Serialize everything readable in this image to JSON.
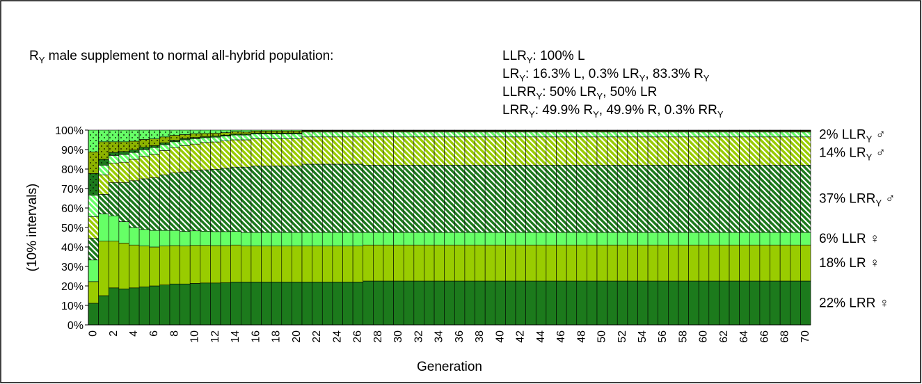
{
  "chart_data": {
    "type": "stacked_bar_100",
    "title": [
      "R",
      "Y",
      " male supplement to normal all-hybrid population:"
    ],
    "annotations": [
      [
        "LLR",
        "Y",
        ": 100% L"
      ],
      [
        "LR",
        "Y",
        ": 16.3% L, 0.3% LR",
        "Y",
        ", 83.3% R",
        "Y"
      ],
      [
        "LLRR",
        "Y",
        ": 50% LR",
        "Y",
        ", 50% LR"
      ],
      [
        "LRR",
        "Y",
        ": 49.9% R",
        "Y",
        ", 49.9% R, 0.3% RR",
        "Y"
      ]
    ],
    "x_label": "Generation",
    "y_label": "(10% intervals)",
    "categories": [
      0,
      null,
      2,
      null,
      4,
      null,
      6,
      null,
      8,
      null,
      10,
      null,
      12,
      null,
      14,
      null,
      16,
      null,
      18,
      null,
      20,
      null,
      22,
      null,
      24,
      null,
      26,
      null,
      28,
      null,
      30,
      null,
      32,
      null,
      34,
      null,
      36,
      null,
      38,
      null,
      40,
      null,
      42,
      null,
      44,
      null,
      46,
      null,
      48,
      null,
      50,
      null,
      52,
      null,
      54,
      null,
      56,
      null,
      58,
      null,
      60,
      null,
      62,
      null,
      64,
      null,
      66,
      null,
      68,
      null,
      70
    ],
    "ylim": [
      0,
      100
    ],
    "yticks": [
      {
        "value": 0,
        "label": "0%"
      },
      {
        "value": 10,
        "label": "10%"
      },
      {
        "value": 20,
        "label": "20%"
      },
      {
        "value": 30,
        "label": "30%"
      },
      {
        "value": 40,
        "label": "40%"
      },
      {
        "value": 50,
        "label": "50%"
      },
      {
        "value": 60,
        "label": "60%"
      },
      {
        "value": 70,
        "label": "70%"
      },
      {
        "value": 80,
        "label": "80%"
      },
      {
        "value": 90,
        "label": "90%"
      },
      {
        "value": 100,
        "label": "100%"
      }
    ],
    "series": [
      {
        "label": [
          "22% LRR ♀"
        ],
        "color": "#1c7a1c",
        "pattern": "solid",
        "values": [
          11.1,
          15,
          19,
          18.5,
          19,
          19.5,
          20,
          20.5,
          21,
          21,
          21.3,
          21.5,
          21.5,
          21.7,
          22,
          22,
          22,
          22,
          22,
          22,
          22,
          22,
          22,
          22,
          22,
          22,
          22,
          22.5,
          22.5,
          22.5,
          22.5,
          22.5,
          22.5,
          22.5,
          22.5,
          22.5,
          22.5,
          22.5,
          22.5,
          22.5,
          22.5,
          22.5,
          22.5,
          22.5,
          22.5,
          22.5,
          22.5,
          22.5,
          22.5,
          22.5,
          22.5,
          22.5,
          22.5,
          22.5,
          22.5,
          22.5,
          22.5,
          22.5,
          22.5,
          22.5,
          22.5,
          22.5,
          22.5,
          22.5,
          22.5,
          22.5,
          22.5,
          22.5,
          22.5,
          22.5,
          22.5
        ]
      },
      {
        "label": [
          "18% LR ♀"
        ],
        "color": "#99cc00",
        "pattern": "solid",
        "values": [
          11.1,
          28,
          24,
          23.5,
          22,
          21,
          20,
          20,
          19.7,
          19.5,
          19.5,
          19.3,
          19.2,
          19,
          19,
          18.5,
          18.5,
          18.5,
          18.5,
          18.5,
          18.5,
          18.5,
          18.5,
          18.5,
          18.5,
          18.5,
          18.5,
          18.5,
          18.5,
          18.5,
          18.5,
          18.5,
          18.5,
          18.5,
          18.5,
          18.5,
          18.5,
          18.5,
          18.5,
          18.5,
          18.5,
          18.5,
          18.5,
          18.5,
          18.5,
          18.5,
          18.5,
          18.5,
          18.5,
          18.5,
          18.5,
          18.5,
          18.5,
          18.5,
          18.5,
          18.5,
          18.5,
          18.5,
          18.5,
          18.5,
          18.5,
          18.5,
          18.5,
          18.5,
          18.5,
          18.5,
          18.5,
          18.5,
          18.5,
          18.5,
          18.5
        ]
      },
      {
        "label": [
          "6% LLR ♀"
        ],
        "color": "#66ff66",
        "pattern": "solid",
        "values": [
          11.1,
          14,
          13,
          11,
          9,
          8.5,
          8.5,
          8,
          7.8,
          7.5,
          7.5,
          7.3,
          7.2,
          7.2,
          7,
          7,
          7,
          7,
          7,
          7,
          7,
          7,
          7,
          7,
          7,
          7,
          7,
          6.5,
          6.5,
          6.5,
          6.5,
          6.5,
          6.5,
          6.5,
          6.5,
          6.5,
          6.5,
          6.5,
          6.5,
          6.5,
          6.5,
          6.5,
          6.5,
          6.5,
          6.5,
          6.5,
          6.5,
          6.5,
          6.5,
          6.5,
          6.5,
          6.5,
          6.5,
          6.5,
          6.5,
          6.5,
          6.5,
          6.5,
          6.5,
          6.5,
          6.5,
          6.5,
          6.5,
          6.5,
          6.5,
          6.5,
          6.5,
          6.5,
          6.5,
          6.5,
          6.5
        ]
      },
      {
        "label": [
          "37% LRR",
          "Y",
          " ♂"
        ],
        "color": "#1c7a1c",
        "pattern": "hatch",
        "values": [
          11.1,
          10,
          17,
          20,
          24,
          26,
          27,
          28.5,
          29.5,
          30.5,
          31,
          31.5,
          32,
          32.5,
          33,
          33.5,
          34,
          34,
          34,
          34,
          34,
          35,
          35,
          35,
          35,
          35,
          35,
          34.5,
          34.5,
          34.5,
          34.5,
          34.5,
          34.5,
          34.5,
          34.5,
          34.5,
          34.5,
          34.5,
          34.5,
          34.5,
          34.5,
          34.5,
          34.5,
          34.5,
          34.5,
          34.5,
          34.5,
          34.5,
          34.5,
          34.5,
          34.5,
          34.5,
          34.5,
          34.5,
          34.5,
          34.5,
          34.5,
          34.5,
          34.5,
          34.5,
          34.5,
          34.5,
          34.5,
          34.5,
          34.5,
          34.5,
          34.5,
          34.5,
          34.5,
          34.5,
          34.5
        ]
      },
      {
        "label": [
          "14% LR",
          "Y",
          " ♂"
        ],
        "color": "#99cc00",
        "pattern": "hatch",
        "values": [
          11.1,
          10,
          10,
          10.5,
          11,
          11.5,
          12,
          12.5,
          13,
          13.5,
          13.5,
          14,
          14,
          14,
          14,
          14,
          14,
          14,
          14,
          14,
          14,
          14,
          14,
          14,
          14,
          14,
          14,
          14.5,
          14.5,
          14.5,
          14.5,
          14.5,
          14.5,
          14.5,
          14.5,
          14.5,
          14.5,
          14.5,
          14.5,
          14.5,
          14.5,
          14.5,
          14.5,
          14.5,
          14.5,
          14.5,
          14.5,
          14.5,
          14.5,
          14.5,
          14.5,
          14.5,
          14.5,
          14.5,
          14.5,
          14.5,
          14.5,
          14.5,
          14.5,
          14.5,
          14.5,
          14.5,
          14.5,
          14.5,
          14.5,
          14.5,
          14.5,
          14.5,
          14.5,
          14.5,
          14.5
        ]
      },
      {
        "label": [
          "2% LLR",
          "Y",
          " ♂"
        ],
        "color": "#66ff66",
        "pattern": "hatch",
        "values": [
          11.1,
          5,
          4,
          4,
          3.5,
          3.5,
          3.5,
          3,
          3,
          3,
          2.8,
          2.5,
          2.5,
          2.5,
          2.5,
          2.5,
          2.5,
          2.5,
          2.5,
          2.5,
          2.5,
          2.5,
          2.5,
          2.5,
          2.5,
          2.5,
          2.5,
          2.5,
          2.5,
          2.5,
          2.5,
          2.5,
          2.5,
          2.5,
          2.5,
          2.5,
          2.5,
          2.5,
          2.5,
          2.5,
          2.5,
          2.5,
          2.5,
          2.5,
          2.5,
          2.5,
          2.5,
          2.5,
          2.5,
          2.5,
          2.5,
          2.5,
          2.5,
          2.5,
          2.5,
          2.5,
          2.5,
          2.5,
          2.5,
          2.5,
          2.5,
          2.5,
          2.5,
          2.5,
          2.5,
          2.5,
          2.5,
          2.5,
          2.5,
          2.5,
          2.5
        ]
      },
      {
        "color": "#1c7a1c",
        "pattern": "dots",
        "values": [
          11.1,
          3,
          1.5,
          1.5,
          1.3,
          1.2,
          1,
          1,
          0.8,
          0.7,
          0.6,
          0.5,
          0.5,
          0.5,
          0.5,
          0.5,
          0.5,
          0.5,
          0.5,
          0.5,
          0.5,
          0.3,
          0.3,
          0.3,
          0.3,
          0.3,
          0.3,
          0.3,
          0.3,
          0.3,
          0.3,
          0.3,
          0.3,
          0.3,
          0.3,
          0.3,
          0.3,
          0.3,
          0.3,
          0.3,
          0.3,
          0.3,
          0.3,
          0.3,
          0.3,
          0.3,
          0.3,
          0.3,
          0.3,
          0.3,
          0.3,
          0.3,
          0.3,
          0.3,
          0.3,
          0.3,
          0.3,
          0.3,
          0.3,
          0.3,
          0.3,
          0.3,
          0.3,
          0.3,
          0.3,
          0.3,
          0.3,
          0.3,
          0.3,
          0.3,
          0.3
        ]
      },
      {
        "color": "#8db300",
        "pattern": "dots",
        "values": [
          11.1,
          9,
          5.5,
          5,
          4.5,
          4,
          3.5,
          3,
          2.5,
          2,
          2,
          1.7,
          1.5,
          1.3,
          1.2,
          1,
          1,
          1,
          1,
          1,
          1,
          0.5,
          0.5,
          0.5,
          0.5,
          0.5,
          0.5,
          0.5,
          0.5,
          0.5,
          0.5,
          0.5,
          0.5,
          0.5,
          0.5,
          0.5,
          0.5,
          0.5,
          0.5,
          0.5,
          0.5,
          0.5,
          0.5,
          0.5,
          0.5,
          0.5,
          0.5,
          0.5,
          0.5,
          0.5,
          0.5,
          0.5,
          0.5,
          0.5,
          0.5,
          0.5,
          0.5,
          0.5,
          0.5,
          0.5,
          0.5,
          0.5,
          0.5,
          0.5,
          0.5,
          0.5,
          0.5,
          0.5,
          0.5,
          0.5,
          0.5
        ]
      },
      {
        "color": "#66ff66",
        "pattern": "dots",
        "values": [
          11.2,
          6,
          6,
          6,
          5.7,
          4.8,
          4.5,
          3.5,
          2.7,
          2.3,
          1.8,
          1.7,
          1.6,
          1.3,
          0.8,
          1,
          0.5,
          0.5,
          0.5,
          0.5,
          0.5,
          0.2,
          0.2,
          0.2,
          0.2,
          0.2,
          0.2,
          0.2,
          0.2,
          0.2,
          0.2,
          0.2,
          0.2,
          0.2,
          0.2,
          0.2,
          0.2,
          0.2,
          0.2,
          0.2,
          0.2,
          0.2,
          0.2,
          0.2,
          0.2,
          0.2,
          0.2,
          0.2,
          0.2,
          0.2,
          0.2,
          0.2,
          0.2,
          0.2,
          0.2,
          0.2,
          0.2,
          0.2,
          0.2,
          0.2,
          0.2,
          0.2,
          0.2,
          0.2,
          0.2,
          0.2,
          0.2,
          0.2,
          0.2,
          0.2,
          0.2
        ]
      }
    ]
  }
}
